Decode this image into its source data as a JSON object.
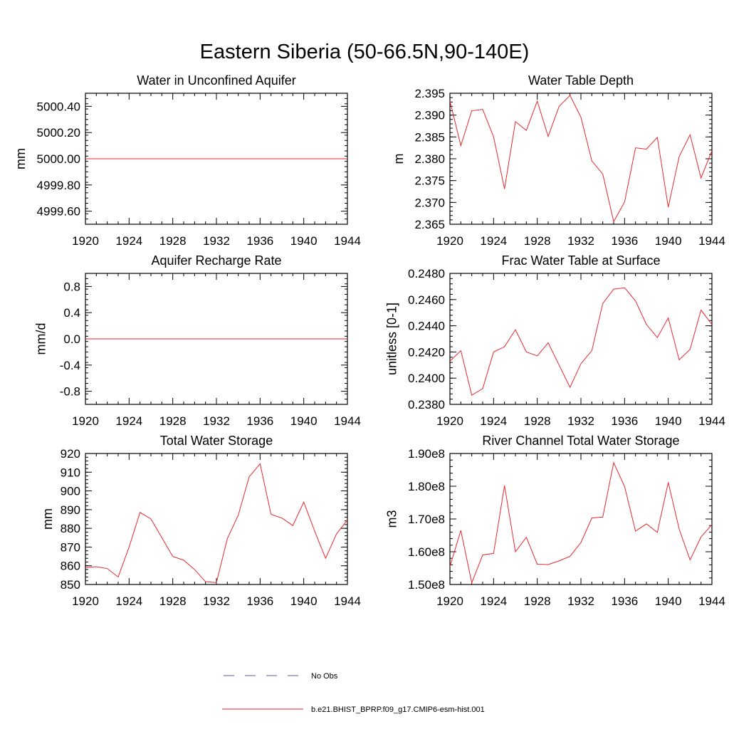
{
  "figure": {
    "title": "Eastern Siberia (50-66.5N,90-140E)"
  },
  "legend": {
    "entries": [
      {
        "label": "No Obs",
        "color": "#5a5aa0",
        "style": "dashed"
      },
      {
        "label": "b.e21.BHIST_BPRP.f09_g17.CMIP6-esm-hist.001",
        "color": "#e8262d",
        "style": "solid"
      }
    ]
  },
  "chart_data": [
    {
      "type": "line",
      "title": "Water in Unconfined Aquifer",
      "xlabel": "",
      "ylabel": "mm",
      "xlim": [
        1920,
        1944
      ],
      "ylim": [
        4999.5,
        5000.5
      ],
      "x_ticks": [
        1920,
        1924,
        1928,
        1932,
        1936,
        1940,
        1944
      ],
      "x_tick_labels": [
        "1920",
        "1924",
        "1928",
        "1932",
        "1936",
        "1940",
        "1944"
      ],
      "y_ticks": [
        4999.6,
        4999.8,
        5000.0,
        5000.2,
        5000.4
      ],
      "y_tick_labels": [
        "4999.60",
        "4999.80",
        "5000.00",
        "5000.20",
        "5000.40"
      ],
      "grid": false,
      "series": [
        {
          "color": "#e8262d",
          "x": [
            1920,
            1921,
            1922,
            1923,
            1924,
            1925,
            1926,
            1927,
            1928,
            1929,
            1930,
            1931,
            1932,
            1933,
            1934,
            1935,
            1936,
            1937,
            1938,
            1939,
            1940,
            1941,
            1942,
            1943,
            1944
          ],
          "y": [
            5000,
            5000,
            5000,
            5000,
            5000,
            5000,
            5000,
            5000,
            5000,
            5000,
            5000,
            5000,
            5000,
            5000,
            5000,
            5000,
            5000,
            5000,
            5000,
            5000,
            5000,
            5000,
            5000,
            5000,
            5000
          ]
        }
      ]
    },
    {
      "type": "line",
      "title": "Water Table Depth",
      "xlabel": "",
      "ylabel": "m",
      "xlim": [
        1920,
        1944
      ],
      "ylim": [
        2.365,
        2.395
      ],
      "x_ticks": [
        1920,
        1924,
        1928,
        1932,
        1936,
        1940,
        1944
      ],
      "x_tick_labels": [
        "1920",
        "1924",
        "1928",
        "1932",
        "1936",
        "1940",
        "1944"
      ],
      "y_ticks": [
        2.365,
        2.37,
        2.375,
        2.38,
        2.385,
        2.39,
        2.395
      ],
      "y_tick_labels": [
        "2.365",
        "2.370",
        "2.375",
        "2.380",
        "2.385",
        "2.390",
        "2.395"
      ],
      "grid": false,
      "series": [
        {
          "color": "#e8262d",
          "x": [
            1920,
            1921,
            1922,
            1923,
            1924,
            1925,
            1926,
            1927,
            1928,
            1929,
            1930,
            1931,
            1932,
            1933,
            1934,
            1935,
            1936,
            1937,
            1938,
            1939,
            1940,
            1941,
            1942,
            1943,
            1944
          ],
          "y": [
            2.3932,
            2.383,
            2.391,
            2.3913,
            2.385,
            2.3731,
            2.3885,
            2.3865,
            2.3932,
            2.3851,
            2.392,
            2.3945,
            2.3895,
            2.3795,
            2.3765,
            2.3656,
            2.3701,
            2.3825,
            2.3822,
            2.3849,
            2.3689,
            2.3805,
            2.3855,
            2.3756,
            2.3818
          ]
        }
      ]
    },
    {
      "type": "line",
      "title": "Aquifer Recharge Rate",
      "xlabel": "",
      "ylabel": "mm/d",
      "xlim": [
        1920,
        1944
      ],
      "ylim": [
        -1.0,
        1.0
      ],
      "x_ticks": [
        1920,
        1924,
        1928,
        1932,
        1936,
        1940,
        1944
      ],
      "x_tick_labels": [
        "1920",
        "1924",
        "1928",
        "1932",
        "1936",
        "1940",
        "1944"
      ],
      "y_ticks": [
        -0.8,
        -0.4,
        0.0,
        0.4,
        0.8
      ],
      "y_tick_labels": [
        "-0.8",
        "-0.4",
        "0.0",
        "0.4",
        "0.8"
      ],
      "grid": false,
      "series": [
        {
          "color": "#e8262d",
          "x": [
            1920,
            1921,
            1922,
            1923,
            1924,
            1925,
            1926,
            1927,
            1928,
            1929,
            1930,
            1931,
            1932,
            1933,
            1934,
            1935,
            1936,
            1937,
            1938,
            1939,
            1940,
            1941,
            1942,
            1943,
            1944
          ],
          "y": [
            0,
            0,
            0,
            0,
            0,
            0,
            0,
            0,
            0,
            0,
            0,
            0,
            0,
            0,
            0,
            0,
            0,
            0,
            0,
            0,
            0,
            0,
            0,
            0,
            0
          ]
        }
      ]
    },
    {
      "type": "line",
      "title": "Frac Water Table at Surface",
      "xlabel": "",
      "ylabel": "unitless [0-1]",
      "xlim": [
        1920,
        1944
      ],
      "ylim": [
        0.238,
        0.248
      ],
      "x_ticks": [
        1920,
        1924,
        1928,
        1932,
        1936,
        1940,
        1944
      ],
      "x_tick_labels": [
        "1920",
        "1924",
        "1928",
        "1932",
        "1936",
        "1940",
        "1944"
      ],
      "y_ticks": [
        0.238,
        0.24,
        0.242,
        0.244,
        0.246,
        0.248
      ],
      "y_tick_labels": [
        "0.2380",
        "0.2400",
        "0.2420",
        "0.2440",
        "0.2460",
        "0.2480"
      ],
      "grid": false,
      "series": [
        {
          "color": "#e8262d",
          "x": [
            1920,
            1921,
            1922,
            1923,
            1924,
            1925,
            1926,
            1927,
            1928,
            1929,
            1930,
            1931,
            1932,
            1933,
            1934,
            1935,
            1936,
            1937,
            1938,
            1939,
            1940,
            1941,
            1942,
            1943,
            1944
          ],
          "y": [
            0.2413,
            0.2421,
            0.2387,
            0.2392,
            0.242,
            0.2424,
            0.2437,
            0.242,
            0.2417,
            0.2427,
            0.241,
            0.2393,
            0.2411,
            0.2421,
            0.2457,
            0.2468,
            0.2469,
            0.2459,
            0.2441,
            0.2431,
            0.2446,
            0.2414,
            0.2422,
            0.2452,
            0.2441
          ]
        }
      ]
    },
    {
      "type": "line",
      "title": "Total Water Storage",
      "xlabel": "",
      "ylabel": "mm",
      "xlim": [
        1920,
        1944
      ],
      "ylim": [
        850,
        920
      ],
      "x_ticks": [
        1920,
        1924,
        1928,
        1932,
        1936,
        1940,
        1944
      ],
      "x_tick_labels": [
        "1920",
        "1924",
        "1928",
        "1932",
        "1936",
        "1940",
        "1944"
      ],
      "y_ticks": [
        850,
        860,
        870,
        880,
        890,
        900,
        910,
        920
      ],
      "y_tick_labels": [
        "850",
        "860",
        "870",
        "880",
        "890",
        "900",
        "910",
        "920"
      ],
      "grid": false,
      "series": [
        {
          "color": "#e8262d",
          "x": [
            1920,
            1921,
            1922,
            1923,
            1924,
            1925,
            1926,
            1927,
            1928,
            1929,
            1930,
            1931,
            1932,
            1933,
            1934,
            1935,
            1936,
            1937,
            1938,
            1939,
            1940,
            1941,
            1942,
            1943,
            1944
          ],
          "y": [
            859,
            859.5,
            858.5,
            854,
            870,
            888.5,
            885,
            875,
            865,
            863,
            858,
            851.5,
            851,
            874.5,
            887,
            907.5,
            914.5,
            887.5,
            885.5,
            881.5,
            894,
            878.5,
            864,
            877,
            884.5
          ]
        }
      ]
    },
    {
      "type": "line",
      "title": "River Channel Total Water Storage",
      "xlabel": "",
      "ylabel": "m3",
      "xlim": [
        1920,
        1944
      ],
      "ylim": [
        150000000,
        190000000
      ],
      "x_ticks": [
        1920,
        1924,
        1928,
        1932,
        1936,
        1940,
        1944
      ],
      "x_tick_labels": [
        "1920",
        "1924",
        "1928",
        "1932",
        "1936",
        "1940",
        "1944"
      ],
      "y_ticks": [
        150000000,
        160000000,
        170000000,
        180000000,
        190000000
      ],
      "y_tick_labels": [
        "1.50e8",
        "1.60e8",
        "1.70e8",
        "1.80e8",
        "1.90e8"
      ],
      "grid": false,
      "series": [
        {
          "color": "#e8262d",
          "x": [
            1920,
            1921,
            1922,
            1923,
            1924,
            1925,
            1926,
            1927,
            1928,
            1929,
            1930,
            1931,
            1932,
            1933,
            1934,
            1935,
            1936,
            1937,
            1938,
            1939,
            1940,
            1941,
            1942,
            1943,
            1944
          ],
          "y": [
            155500000,
            166500000,
            150500000,
            159000000,
            159500000,
            180200000,
            160000000,
            164400000,
            156200000,
            156100000,
            157200000,
            158600000,
            162800000,
            170300000,
            170600000,
            187200000,
            179900000,
            166300000,
            168500000,
            165900000,
            181200000,
            166900000,
            157500000,
            164500000,
            168300000
          ]
        }
      ]
    }
  ]
}
